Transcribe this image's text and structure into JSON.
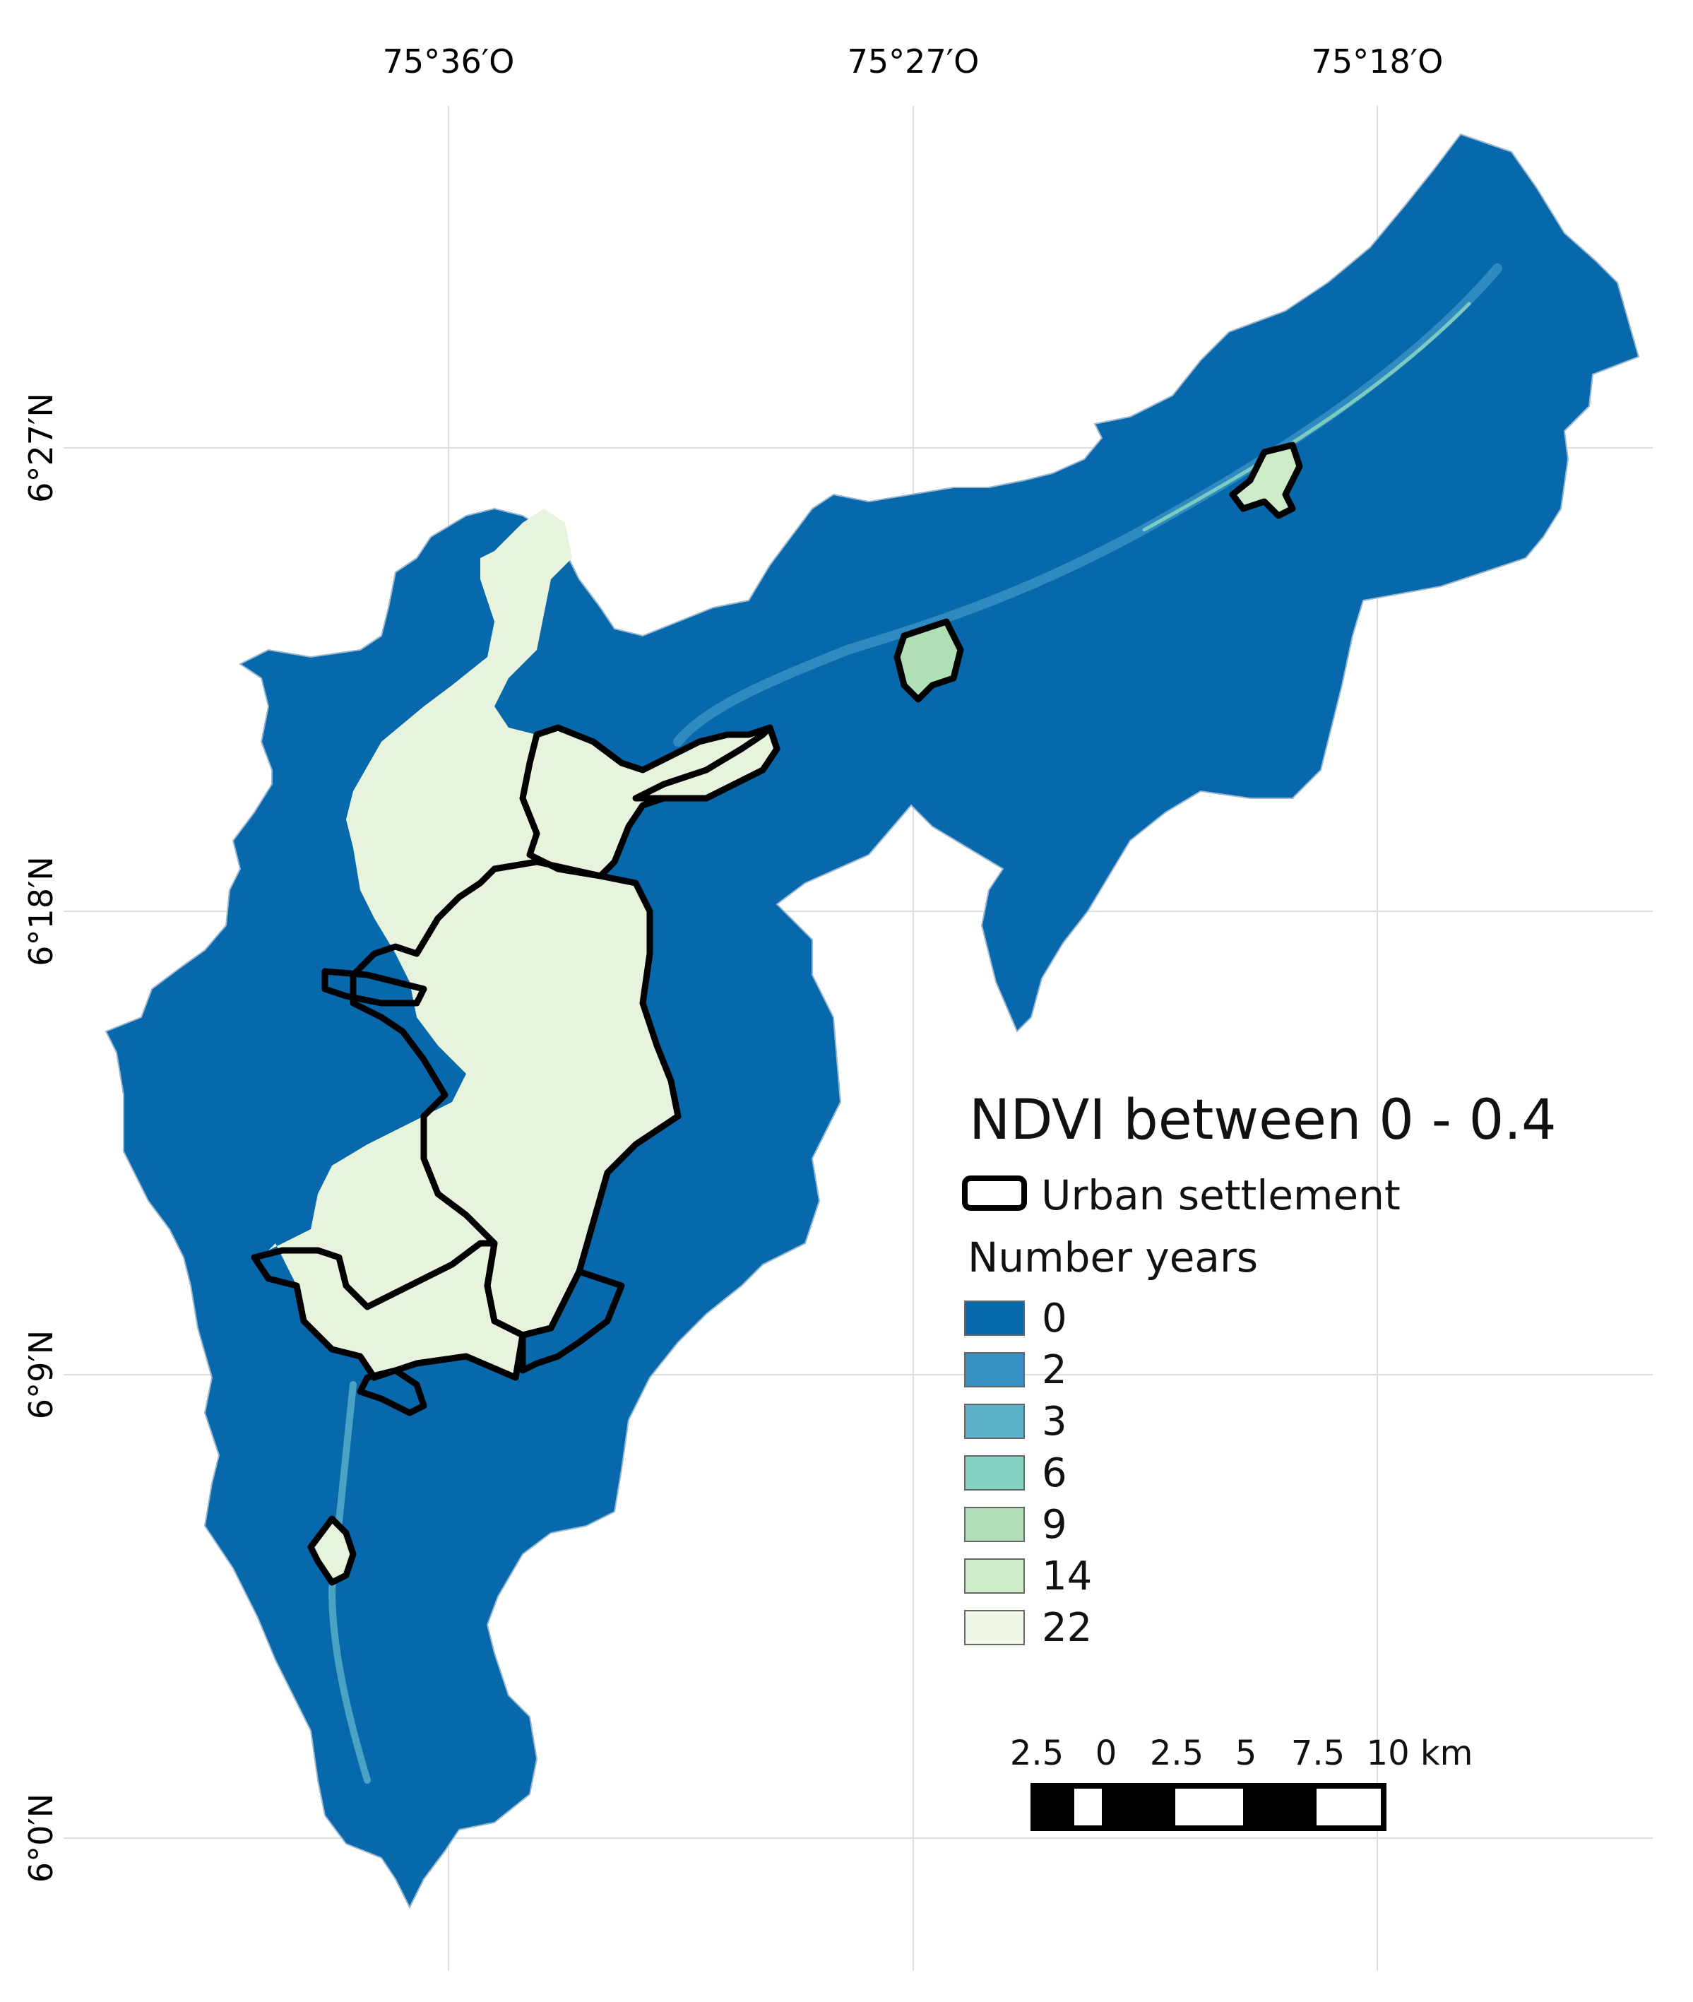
{
  "graticule": {
    "lon_labels": [
      "75°36′O",
      "75°27′O",
      "75°18′O"
    ],
    "lat_labels": [
      "6°27′N",
      "6°18′N",
      "6°9′N",
      "6°0′N"
    ]
  },
  "legend": {
    "title": "NDVI between 0 - 0.4",
    "urban_label": "Urban settlement",
    "years_label": "Number years",
    "classes": [
      {
        "label": "0",
        "color": "#0868ac"
      },
      {
        "label": "2",
        "color": "#3691c2"
      },
      {
        "label": "3",
        "color": "#5cb0c8"
      },
      {
        "label": "6",
        "color": "#85d1c2"
      },
      {
        "label": "9",
        "color": "#b0dfb6"
      },
      {
        "label": "14",
        "color": "#cdebc7"
      },
      {
        "label": "22",
        "color": "#eff8e6"
      }
    ]
  },
  "scale_bar": {
    "ticks": [
      "2.5",
      "0",
      "2.5",
      "5",
      "7.5",
      "10 km"
    ]
  },
  "colors": {
    "basin": "#0868ac",
    "urban_fill": "#e7f3dc",
    "outline": "#000000",
    "grid": "#dddddd"
  }
}
